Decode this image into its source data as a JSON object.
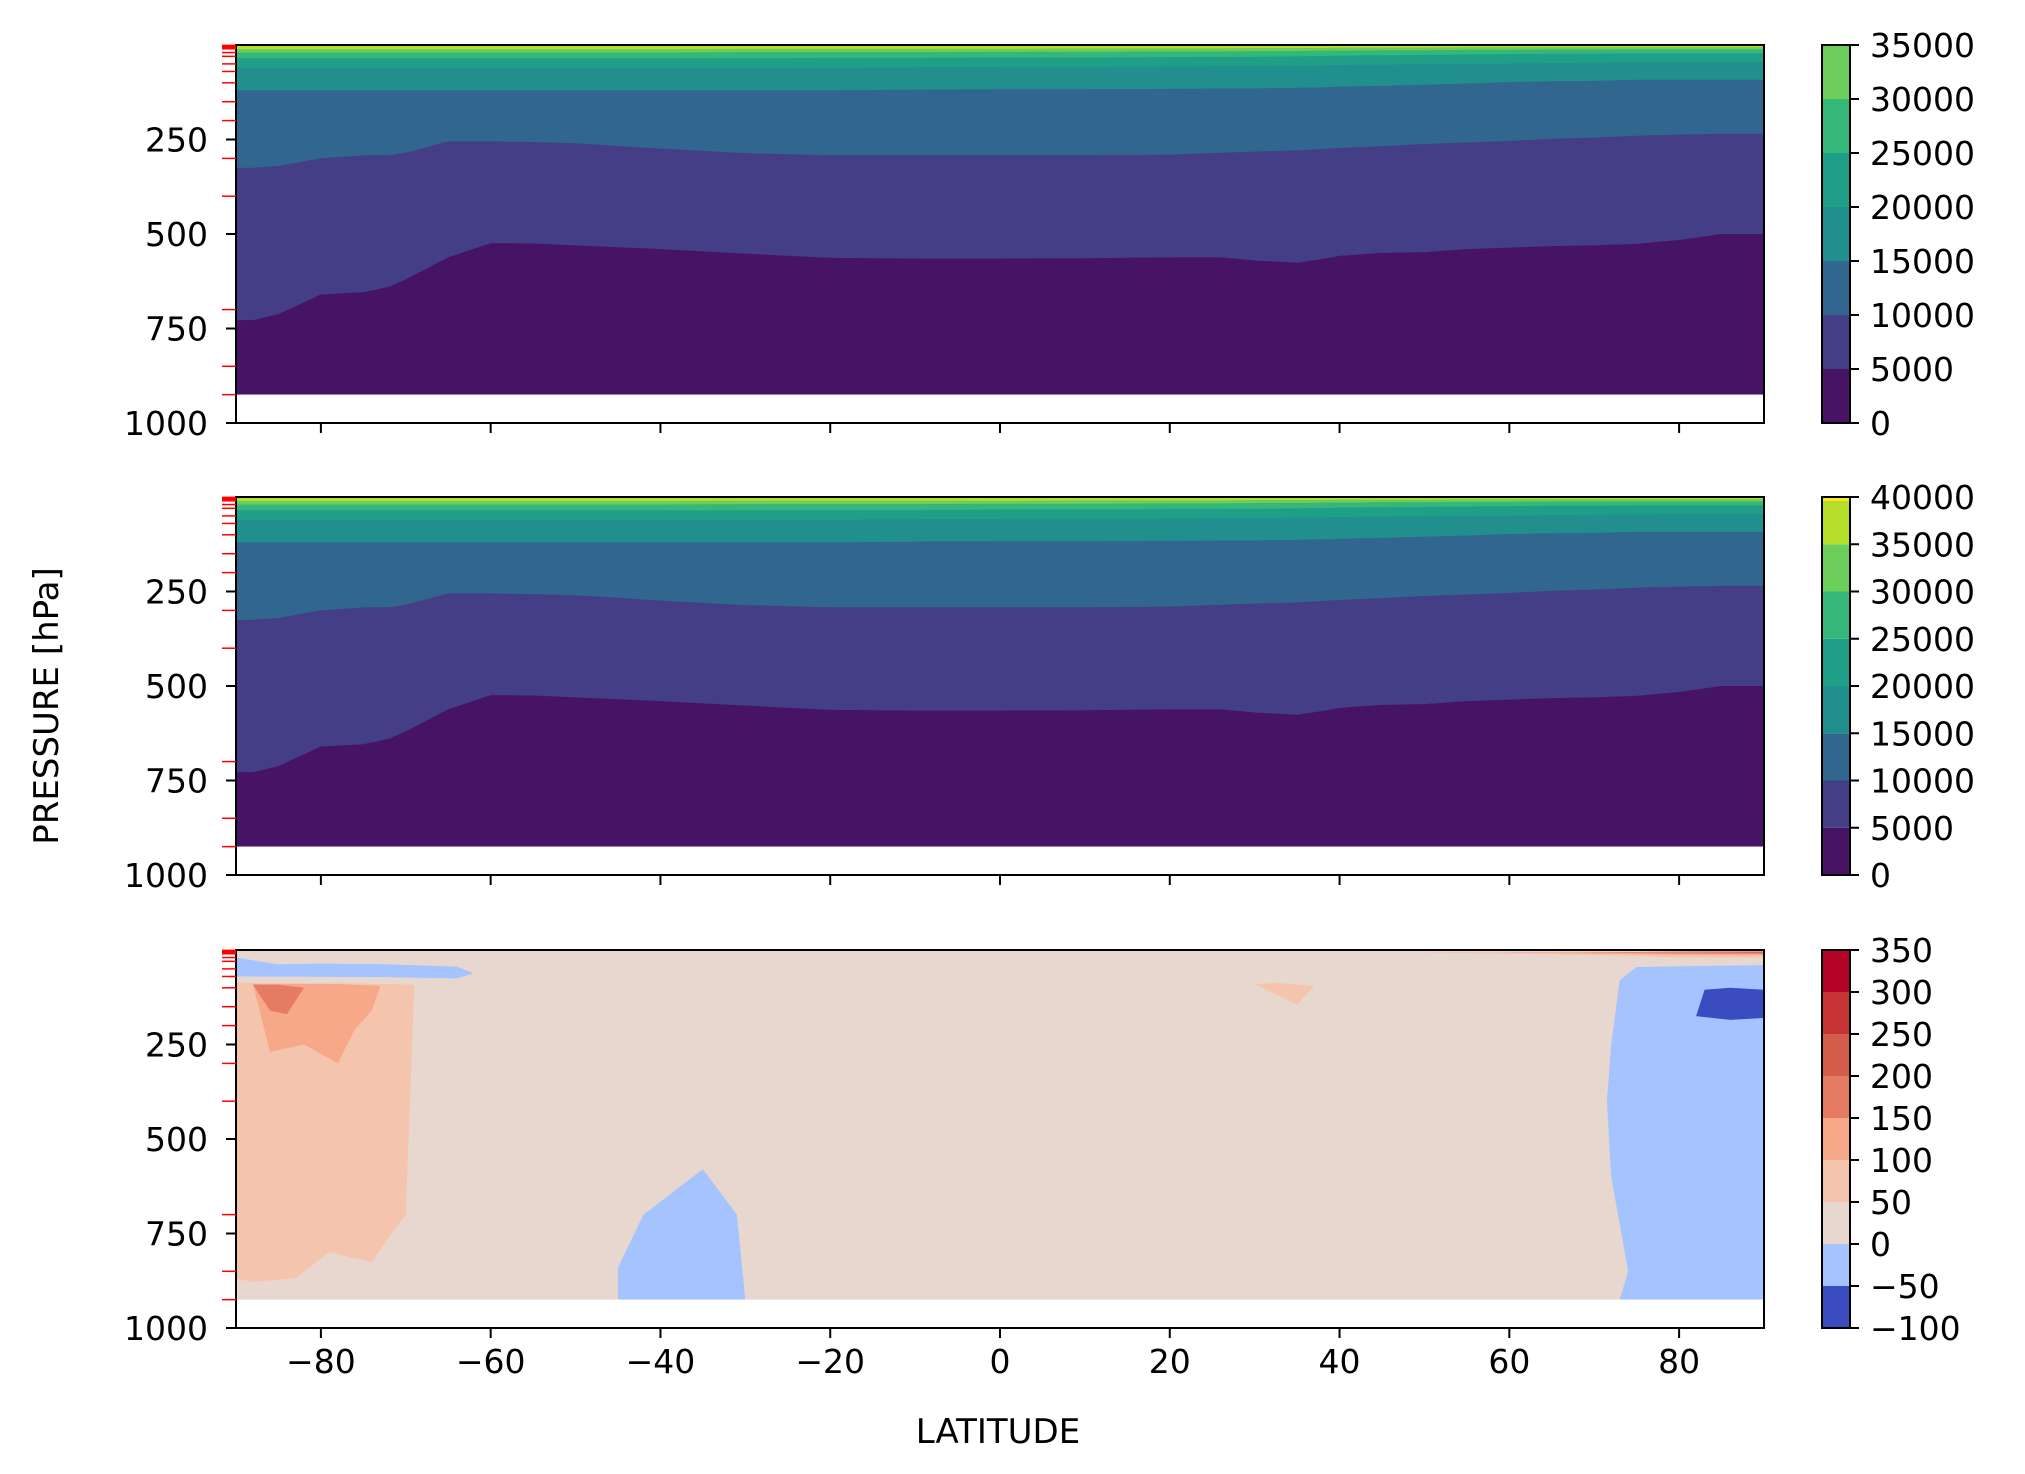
{
  "figure": {
    "ylabel": "PRESSURE [hPa]",
    "xlabel": "LATITUDE"
  },
  "chart_data": [
    {
      "type": "heatmap",
      "name": "panel-1",
      "xlim": [
        -90,
        90
      ],
      "ylim": [
        1000,
        0
      ],
      "x_ticks": [
        -80,
        -60,
        -40,
        -20,
        0,
        20,
        40,
        60,
        80
      ],
      "y_ticks": [
        250,
        500,
        750,
        1000
      ],
      "y_tick_labels": [
        "250",
        "500",
        "750",
        "1000"
      ],
      "show_x_tick_labels": false,
      "data_bottom_pressure": 925,
      "lat_profile": [
        -90,
        -88,
        -85,
        -80,
        -75,
        -72,
        -70,
        -65,
        -60,
        -55,
        -50,
        -40,
        -30,
        -20,
        -10,
        0,
        10,
        20,
        26,
        30,
        35,
        38,
        40,
        45,
        50,
        55,
        60,
        65,
        70,
        75,
        80,
        85,
        90
      ],
      "contours_hPa": [
        [
          728,
          728,
          712,
          660,
          654,
          640,
          620,
          562,
          524,
          525,
          530,
          540,
          552,
          563,
          565,
          565,
          564,
          562,
          562,
          570,
          576,
          566,
          558,
          550,
          548,
          540,
          536,
          532,
          530,
          526,
          516,
          500,
          500
        ],
        [
          325,
          325,
          320,
          300,
          292,
          292,
          285,
          255,
          255,
          257,
          260,
          274,
          286,
          292,
          292,
          292,
          292,
          290,
          285,
          282,
          279,
          275,
          272,
          268,
          262,
          258,
          254,
          248,
          245,
          240,
          237,
          235,
          235
        ],
        [
          120,
          120,
          120,
          120,
          120,
          120,
          120,
          120,
          120,
          120,
          120,
          120,
          120,
          120,
          118,
          117,
          117,
          116,
          115,
          115,
          113,
          112,
          110,
          108,
          105,
          102,
          98,
          96,
          95,
          92,
          92,
          92,
          92
        ],
        [
          60,
          60,
          60,
          60,
          60,
          60,
          60,
          60,
          60,
          60,
          60,
          60,
          60,
          60,
          59,
          58,
          58,
          57,
          56,
          56,
          55,
          54,
          53,
          52,
          51,
          50,
          49,
          48,
          47,
          46,
          45,
          45,
          45
        ],
        [
          35,
          35,
          35,
          35,
          35,
          35,
          35,
          35,
          35,
          35,
          35,
          35,
          35,
          34,
          34,
          33,
          33,
          32,
          31,
          31,
          30,
          29,
          28,
          27,
          26,
          25,
          24,
          23,
          23,
          22,
          22,
          22,
          22
        ],
        [
          20,
          20,
          20,
          20,
          20,
          20,
          20,
          20,
          20,
          20,
          20,
          20,
          19,
          19,
          19,
          18,
          18,
          17,
          17,
          16,
          16,
          15,
          15,
          14,
          14,
          13,
          13,
          12,
          12,
          12,
          12,
          12,
          12
        ],
        [
          11,
          11,
          11,
          11,
          11,
          11,
          11,
          11,
          11,
          11,
          11,
          11,
          10,
          10,
          10,
          10,
          9,
          9,
          9,
          8,
          8,
          8,
          7,
          7,
          7,
          6,
          6,
          6,
          6,
          6,
          6,
          6,
          6
        ]
      ],
      "level_colors": [
        "#471365",
        "#433e85",
        "#31668e",
        "#218f8d",
        "#1f9f88",
        "#35b779",
        "#6ccd5a",
        "#b5de2b"
      ],
      "colorbar": {
        "levels": [
          0,
          5000,
          10000,
          15000,
          20000,
          25000,
          30000,
          35000
        ],
        "colors": [
          "#471365",
          "#433e85",
          "#31668e",
          "#218f8d",
          "#1f9f88",
          "#35b779",
          "#6ccd5a"
        ],
        "tick_values": [
          0,
          5000,
          10000,
          15000,
          20000,
          25000,
          30000,
          35000
        ],
        "tick_labels": [
          "0",
          "5000",
          "10000",
          "15000",
          "20000",
          "25000",
          "30000",
          "35000"
        ]
      },
      "level_marks_hPa": [
        1,
        2,
        3,
        5,
        7,
        10,
        20,
        30,
        50,
        70,
        100,
        150,
        200,
        300,
        400,
        700,
        850,
        925
      ]
    },
    {
      "type": "heatmap",
      "name": "panel-2",
      "xlim": [
        -90,
        90
      ],
      "ylim": [
        1000,
        0
      ],
      "x_ticks": [
        -80,
        -60,
        -40,
        -20,
        0,
        20,
        40,
        60,
        80
      ],
      "y_ticks": [
        250,
        500,
        750,
        1000
      ],
      "y_tick_labels": [
        "250",
        "500",
        "750",
        "1000"
      ],
      "show_x_tick_labels": false,
      "data_bottom_pressure": 925,
      "lat_profile": [
        -90,
        -88,
        -85,
        -80,
        -75,
        -72,
        -70,
        -65,
        -60,
        -55,
        -50,
        -40,
        -30,
        -20,
        -10,
        0,
        10,
        20,
        26,
        30,
        35,
        38,
        40,
        45,
        50,
        55,
        60,
        65,
        70,
        75,
        80,
        85,
        90
      ],
      "contours_hPa": [
        [
          728,
          728,
          712,
          660,
          654,
          640,
          620,
          562,
          524,
          525,
          530,
          540,
          552,
          563,
          565,
          565,
          564,
          562,
          562,
          570,
          576,
          566,
          558,
          550,
          548,
          540,
          536,
          532,
          530,
          526,
          516,
          500,
          500
        ],
        [
          325,
          325,
          320,
          300,
          292,
          292,
          285,
          255,
          255,
          257,
          260,
          274,
          286,
          292,
          292,
          292,
          292,
          290,
          285,
          282,
          279,
          275,
          272,
          268,
          262,
          258,
          254,
          248,
          245,
          240,
          237,
          235,
          235
        ],
        [
          120,
          120,
          120,
          120,
          120,
          120,
          120,
          120,
          120,
          120,
          120,
          120,
          120,
          120,
          118,
          117,
          117,
          116,
          115,
          115,
          113,
          112,
          110,
          108,
          105,
          102,
          98,
          96,
          95,
          92,
          92,
          92,
          92
        ],
        [
          60,
          60,
          60,
          60,
          60,
          60,
          60,
          60,
          60,
          60,
          60,
          60,
          60,
          60,
          59,
          58,
          58,
          57,
          56,
          56,
          55,
          54,
          53,
          52,
          51,
          50,
          49,
          48,
          47,
          46,
          45,
          45,
          45
        ],
        [
          35,
          35,
          35,
          35,
          35,
          35,
          35,
          35,
          35,
          35,
          35,
          35,
          35,
          34,
          34,
          33,
          33,
          32,
          31,
          31,
          30,
          29,
          28,
          27,
          26,
          25,
          24,
          23,
          23,
          22,
          22,
          22,
          22
        ],
        [
          20,
          20,
          20,
          20,
          20,
          20,
          20,
          20,
          20,
          20,
          20,
          20,
          19,
          19,
          19,
          18,
          18,
          17,
          17,
          16,
          16,
          15,
          15,
          14,
          14,
          13,
          13,
          12,
          12,
          12,
          12,
          12,
          12
        ],
        [
          11,
          11,
          11,
          11,
          11,
          11,
          11,
          11,
          11,
          11,
          11,
          11,
          10,
          10,
          10,
          10,
          9,
          9,
          9,
          8,
          8,
          8,
          7,
          7,
          7,
          6,
          6,
          6,
          6,
          6,
          6,
          6,
          6
        ]
      ],
      "level_colors": [
        "#471365",
        "#433e85",
        "#31668e",
        "#218f8d",
        "#1f9f88",
        "#35b779",
        "#6ccd5a",
        "#b5de2b"
      ],
      "colorbar": {
        "levels": [
          0,
          5000,
          10000,
          15000,
          20000,
          25000,
          30000,
          35000,
          40000
        ],
        "colors": [
          "#471365",
          "#433e85",
          "#31668e",
          "#218f8d",
          "#1f9f88",
          "#35b779",
          "#6ccd5a",
          "#b5de2b"
        ],
        "top_color": "#fde725",
        "tick_values": [
          0,
          5000,
          10000,
          15000,
          20000,
          25000,
          30000,
          35000,
          40000
        ],
        "tick_labels": [
          "0",
          "5000",
          "10000",
          "15000",
          "20000",
          "25000",
          "30000",
          "35000",
          "40000"
        ]
      },
      "level_marks_hPa": [
        1,
        2,
        3,
        5,
        7,
        10,
        20,
        30,
        50,
        70,
        100,
        150,
        200,
        300,
        400,
        700,
        850,
        925
      ]
    },
    {
      "type": "heatmap",
      "name": "panel-difference",
      "xlim": [
        -90,
        90
      ],
      "ylim": [
        1000,
        0
      ],
      "x_ticks": [
        -80,
        -60,
        -40,
        -20,
        0,
        20,
        40,
        60,
        80
      ],
      "x_tick_labels": [
        "−80",
        "−60",
        "−40",
        "−20",
        "0",
        "20",
        "40",
        "60",
        "80"
      ],
      "y_ticks": [
        250,
        500,
        750,
        1000
      ],
      "y_tick_labels": [
        "250",
        "500",
        "750",
        "1000"
      ],
      "show_x_tick_labels": true,
      "data_bottom_pressure": 925,
      "background_color": "#e7d7ce",
      "regions": [
        {
          "value_band": [
            -50,
            0
          ],
          "color": "#a5c3fe",
          "lat": [
            -90,
            -90,
            -72,
            -64,
            -62,
            -64,
            -72,
            -80,
            -85
          ],
          "p": [
            20,
            70,
            72,
            75,
            62,
            44,
            38,
            36,
            38
          ]
        },
        {
          "value_band": [
            50,
            100
          ],
          "color": "#f5c4ac",
          "lat": [
            -90,
            -90,
            -88,
            -83,
            -79,
            -74,
            -72,
            -70,
            -69,
            -73,
            -78,
            -84,
            -88
          ],
          "p": [
            85,
            870,
            878,
            868,
            800,
            825,
            760,
            700,
            92,
            90,
            88,
            88,
            88
          ]
        },
        {
          "value_band": [
            100,
            150
          ],
          "color": "#f7a889",
          "lat": [
            -88,
            -86,
            -82,
            -78,
            -76,
            -74,
            -73,
            -78,
            -85,
            -88
          ],
          "p": [
            90,
            270,
            250,
            300,
            210,
            160,
            95,
            90,
            90,
            90
          ]
        },
        {
          "value_band": [
            150,
            200
          ],
          "color": "#e67b64",
          "lat": [
            -88,
            -86,
            -84,
            -82,
            -85
          ],
          "p": [
            92,
            160,
            170,
            100,
            92
          ]
        },
        {
          "value_band": [
            -50,
            0
          ],
          "color": "#a5c3fe",
          "lat": [
            -45,
            -45,
            -40,
            -36,
            -33,
            -30,
            -31,
            -35,
            -42
          ],
          "p": [
            840,
            925,
            925,
            925,
            925,
            925,
            700,
            580,
            700
          ]
        },
        {
          "value_band": [
            50,
            100
          ],
          "color": "#f5c4ac",
          "lat": [
            30,
            35,
            37,
            33
          ],
          "p": [
            90,
            145,
            95,
            88
          ]
        },
        {
          "value_band": [
            -50,
            0
          ],
          "color": "#a5c3fe",
          "lat": [
            73,
            72,
            71.5,
            72,
            74,
            73,
            75,
            90,
            90,
            83,
            75
          ],
          "p": [
            80,
            250,
            400,
            600,
            850,
            925,
            925,
            925,
            40,
            42,
            45
          ]
        },
        {
          "value_band": [
            -100,
            -50
          ],
          "color": "#3b4cc0",
          "lat": [
            83,
            82,
            86,
            90,
            90,
            86
          ],
          "p": [
            105,
            175,
            185,
            180,
            105,
            100
          ]
        },
        {
          "value_band": [
            50,
            100
          ],
          "color": "#f5c4ac",
          "lat": [
            48,
            60,
            72,
            80,
            90,
            90,
            75,
            60
          ],
          "p": [
            6,
            10,
            14,
            20,
            20,
            6,
            6,
            6
          ]
        },
        {
          "value_band": [
            100,
            150
          ],
          "color": "#f7a889",
          "lat": [
            58,
            68,
            78,
            90,
            90,
            70
          ],
          "p": [
            6,
            9,
            12,
            14,
            6,
            6
          ]
        },
        {
          "value_band": [
            150,
            200
          ],
          "color": "#e67b64",
          "lat": [
            68,
            78,
            90,
            90
          ],
          "p": [
            6,
            9,
            10,
            6
          ]
        },
        {
          "value_band": [
            200,
            250
          ],
          "color": "#d55d4c",
          "lat": [
            75,
            85,
            90,
            90
          ],
          "p": [
            4,
            6,
            7,
            4
          ]
        }
      ],
      "colorbar": {
        "levels": [
          -100,
          -50,
          0,
          50,
          100,
          150,
          200,
          250,
          300,
          350
        ],
        "colors": [
          "#3b4cc0",
          "#a5c3fe",
          "#e7d7ce",
          "#f5c4ac",
          "#f7a889",
          "#e67b64",
          "#d55d4c",
          "#c53334",
          "#b40426"
        ],
        "tick_values": [
          -100,
          -50,
          0,
          50,
          100,
          150,
          200,
          250,
          300,
          350
        ],
        "tick_labels": [
          "−100",
          "−50",
          "0",
          "50",
          "100",
          "150",
          "200",
          "250",
          "300",
          "350"
        ]
      },
      "level_marks_hPa": [
        1,
        2,
        3,
        5,
        7,
        10,
        20,
        30,
        50,
        70,
        100,
        150,
        200,
        300,
        400,
        700,
        850,
        925
      ]
    }
  ]
}
